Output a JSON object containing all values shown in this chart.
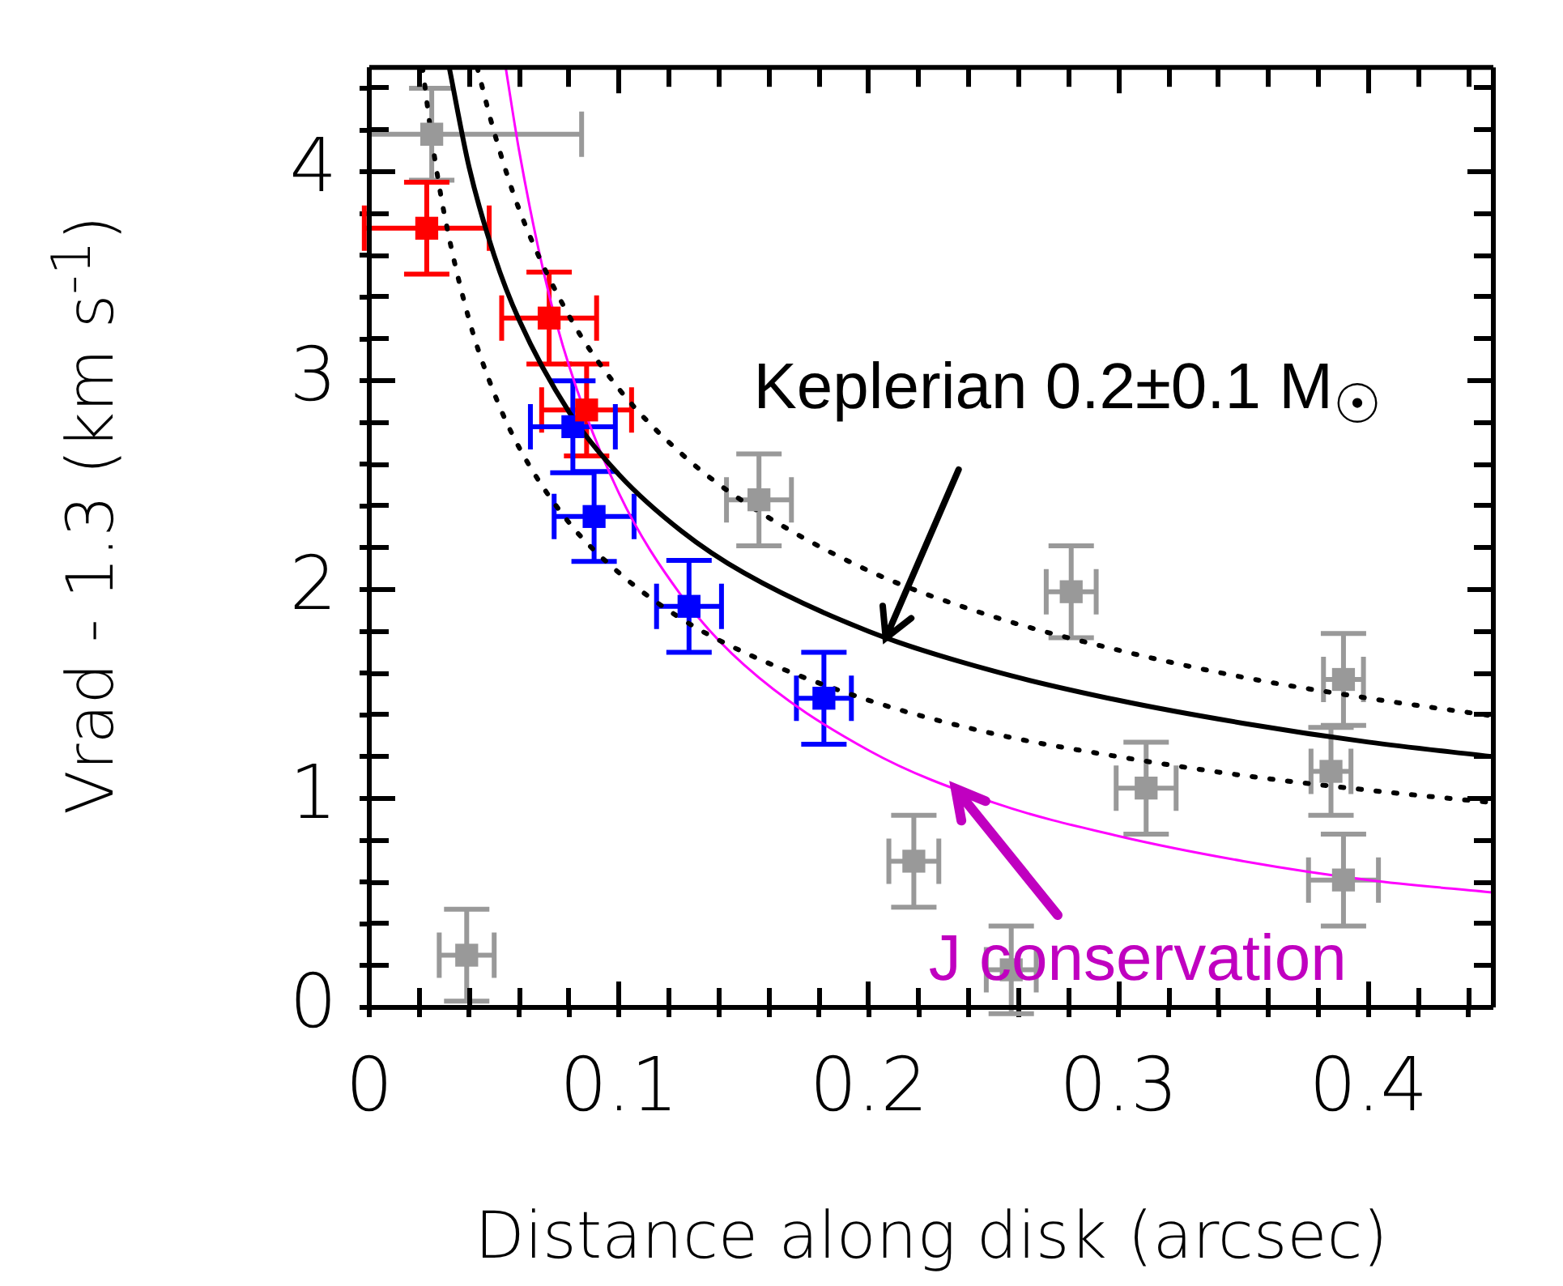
{
  "chart_data": {
    "type": "scatter",
    "xlabel": "Distance along disk (arcsec)",
    "ylabel": "Vrad - 1.3 (km s$^{-1}$)",
    "xlim": [
      0,
      0.45
    ],
    "ylim": [
      0,
      4.5
    ],
    "xticks": [
      0,
      {
        "value": 0.02,
        "label": null
      },
      {
        "value": 0.04,
        "label": null
      },
      {
        "value": 0.06,
        "label": null
      },
      {
        "value": 0.08,
        "label": null
      },
      0.1,
      {
        "value": 0.12,
        "label": null
      },
      {
        "value": 0.14,
        "label": null
      },
      {
        "value": 0.16,
        "label": null
      },
      {
        "value": 0.18,
        "label": null
      },
      0.2,
      {
        "value": 0.22,
        "label": null
      },
      {
        "value": 0.24,
        "label": null
      },
      {
        "value": 0.26,
        "label": null
      },
      {
        "value": 0.28,
        "label": null
      },
      0.3,
      {
        "value": 0.32,
        "label": null
      },
      {
        "value": 0.34,
        "label": null
      },
      {
        "value": 0.36,
        "label": null
      },
      {
        "value": 0.38,
        "label": null
      },
      0.4,
      {
        "value": 0.42,
        "label": null
      },
      {
        "value": 0.44,
        "label": null
      }
    ],
    "yticks": [
      0,
      {
        "value": 0.2,
        "label": null
      },
      {
        "value": 0.4,
        "label": null
      },
      {
        "value": 0.6,
        "label": null
      },
      {
        "value": 0.8,
        "label": null
      },
      1,
      {
        "value": 1.2,
        "label": null
      },
      {
        "value": 1.4,
        "label": null
      },
      {
        "value": 1.6,
        "label": null
      },
      {
        "value": 1.8,
        "label": null
      },
      2,
      {
        "value": 2.2,
        "label": null
      },
      {
        "value": 2.4,
        "label": null
      },
      {
        "value": 2.6,
        "label": null
      },
      {
        "value": 2.8,
        "label": null
      },
      3,
      {
        "value": 3.2,
        "label": null
      },
      {
        "value": 3.4,
        "label": null
      },
      {
        "value": 3.6,
        "label": null
      },
      {
        "value": 3.8,
        "label": null
      },
      4,
      {
        "value": 4.2,
        "label": null
      },
      {
        "value": 4.4,
        "label": null
      }
    ],
    "grid": false,
    "legend": false,
    "marker": "square",
    "annotations": [
      {
        "text": "Keplerian 0.2±0.1 M$_{☉}$",
        "x": 0.207,
        "y": 1.77
      },
      {
        "text": "J conservation",
        "x": 0.235,
        "y": 1.05
      }
    ],
    "series": [
      {
        "type": "line",
        "color": "#000000",
        "line_style": "dotted",
        "marker": "none",
        "x": [
          0.0213,
          0.025,
          0.03,
          0.04,
          0.05,
          0.06,
          0.08,
          0.1,
          0.125,
          0.15,
          0.2,
          0.25,
          0.3,
          0.35,
          0.4,
          0.45
        ],
        "values": [
          4.5,
          4.16,
          3.8,
          3.29,
          2.94,
          2.68,
          2.32,
          2.08,
          1.86,
          1.7,
          1.47,
          1.31,
          1.2,
          1.11,
          1.04,
          0.98
        ]
      },
      {
        "type": "line",
        "color": "#000000",
        "line_style": "solid",
        "marker": "none",
        "x": [
          0.032,
          0.04,
          0.05,
          0.06,
          0.08,
          0.1,
          0.125,
          0.15,
          0.2,
          0.25,
          0.3,
          0.35,
          0.4,
          0.45
        ],
        "values": [
          4.5,
          4.02,
          3.6,
          3.29,
          2.85,
          2.55,
          2.28,
          2.08,
          1.8,
          1.61,
          1.47,
          1.36,
          1.27,
          1.2
        ]
      },
      {
        "type": "line",
        "color": "#000000",
        "line_style": "dotted",
        "marker": "none",
        "x": [
          0.0432,
          0.05,
          0.06,
          0.08,
          0.1,
          0.125,
          0.15,
          0.2,
          0.25,
          0.3,
          0.35,
          0.4,
          0.45
        ],
        "values": [
          4.5,
          4.19,
          3.82,
          3.31,
          2.96,
          2.65,
          2.42,
          2.09,
          1.87,
          1.71,
          1.58,
          1.48,
          1.395
        ]
      },
      {
        "type": "line",
        "color": "#ff00ff",
        "line_style": "solid",
        "marker": "none",
        "x": [
          0.0546,
          0.06,
          0.07,
          0.08,
          0.1,
          0.125,
          0.15,
          0.2,
          0.25,
          0.3,
          0.35,
          0.4,
          0.45
        ],
        "values": [
          4.5,
          4.1,
          3.51,
          3.07,
          2.46,
          1.97,
          1.64,
          1.23,
          0.98,
          0.82,
          0.7,
          0.61,
          0.55
        ]
      },
      {
        "type": "scatter",
        "color": "#999999",
        "x": [
          0.025,
          0.156,
          0.281,
          0.39,
          0.385,
          0.311,
          0.39,
          0.218,
          0.257,
          0.039
        ],
        "values": [
          4.18,
          2.43,
          1.99,
          1.57,
          1.13,
          1.05,
          0.61,
          0.7,
          0.18,
          0.25
        ],
        "errors": [
          0.22,
          0.22,
          0.22,
          0.22,
          0.21,
          0.22,
          0.22,
          0.22,
          0.21,
          0.22
        ],
        "xerrors": [
          [
            0,
            0.085
          ],
          0.013,
          0.01,
          0.008,
          0.008,
          0.012,
          0.014,
          0.01,
          0.01,
          0.011
        ]
      },
      {
        "type": "scatter",
        "color": "#ff0000",
        "x": [
          0.023,
          0.072,
          0.087
        ],
        "values": [
          3.73,
          3.3,
          2.86
        ],
        "errors": [
          0.22,
          0.22,
          0.22
        ],
        "xerrors": [
          0.025,
          0.019,
          0.018
        ]
      },
      {
        "type": "scatter",
        "color": "#0000ff",
        "x": [
          0.0815,
          0.09,
          0.128,
          0.182
        ],
        "values": [
          2.78,
          2.35,
          1.92,
          1.48
        ],
        "errors": [
          0.22,
          0.215,
          0.22,
          0.22
        ],
        "xerrors": [
          0.017,
          0.016,
          0.013,
          0.011
        ]
      }
    ]
  }
}
